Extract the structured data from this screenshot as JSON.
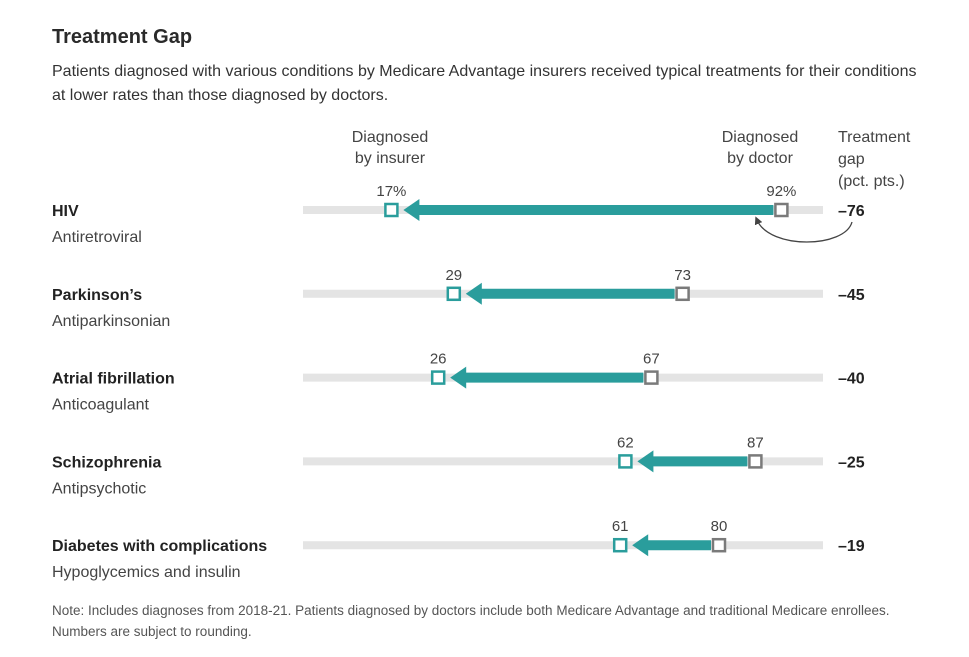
{
  "title": "Treatment Gap",
  "subtitle": "Patients diagnosed with various conditions by Medicare Advantage insurers received typical treatments for their conditions at lower rates than those diagnosed by doctors.",
  "note": "Note: Includes diagnoses from 2018-21. Patients diagnosed by doctors include both Medicare Advantage and traditional Medicare enrollees. Numbers are subject to rounding.",
  "colors": {
    "insurer": "#2a9d9c",
    "doctor": "#7a7a7a",
    "track": "#e4e4e4",
    "arrow": "#2a9d9c"
  },
  "chart_data": {
    "type": "dumbbell",
    "headers": {
      "insurer": [
        "Diagnosed",
        "by insurer"
      ],
      "doctor": [
        "Diagnosed",
        "by doctor"
      ],
      "gap": [
        "Treatment",
        "gap",
        "(pct. pts.)"
      ]
    },
    "xlim": [
      0,
      100
    ],
    "series": [
      {
        "name": "Diagnosed by insurer"
      },
      {
        "name": "Diagnosed by doctor"
      }
    ],
    "rows": [
      {
        "condition": "HIV",
        "treatment": "Antiretroviral",
        "insurer": 17,
        "doctor": 92,
        "gap": "–76",
        "insurer_label": "17%",
        "doctor_label": "92%"
      },
      {
        "condition": "Parkinson’s",
        "treatment": "Antiparkinsonian",
        "insurer": 29,
        "doctor": 73,
        "gap": "–45",
        "insurer_label": "29",
        "doctor_label": "73"
      },
      {
        "condition": "Atrial fibrillation",
        "treatment": "Anticoagulant",
        "insurer": 26,
        "doctor": 67,
        "gap": "–40",
        "insurer_label": "26",
        "doctor_label": "67"
      },
      {
        "condition": "Schizophrenia",
        "treatment": "Antipsychotic",
        "insurer": 62,
        "doctor": 87,
        "gap": "–25",
        "insurer_label": "62",
        "doctor_label": "87"
      },
      {
        "condition": "Diabetes with complications",
        "treatment": "Hypoglycemics and insulin",
        "insurer": 61,
        "doctor": 80,
        "gap": "–19",
        "insurer_label": "61",
        "doctor_label": "80"
      }
    ]
  }
}
